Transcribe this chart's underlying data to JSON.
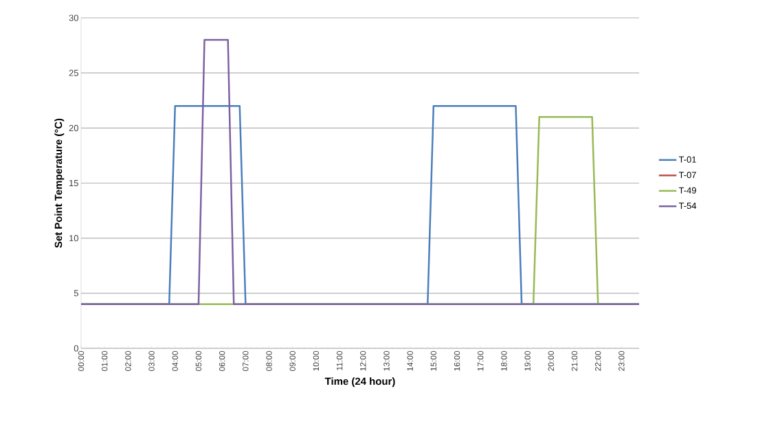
{
  "chart_data": {
    "type": "line",
    "xlabel": "Time (24 hour)",
    "ylabel": "Set Point Temperature (°C)",
    "series": [
      {
        "name": "T-01",
        "color": "#4a7ebb",
        "x": [
          0,
          3.75,
          4.0,
          6.75,
          7.0,
          14.75,
          15.0,
          18.5,
          18.75,
          23.75
        ],
        "values": [
          4,
          4,
          22,
          22,
          4,
          4,
          22,
          22,
          4,
          4
        ]
      },
      {
        "name": "T-07",
        "color": "#be4b48"
      },
      {
        "name": "T-49",
        "color": "#98b954",
        "x": [
          0,
          19.25,
          19.5,
          21.75,
          22.0,
          23.75
        ],
        "values": [
          4,
          4,
          21,
          21,
          4,
          4
        ]
      },
      {
        "name": "T-54",
        "color": "#7d60a0",
        "x": [
          0,
          5.0,
          5.25,
          6.25,
          6.5,
          23.75
        ],
        "values": [
          4,
          4,
          28,
          28,
          4,
          4
        ]
      }
    ],
    "xlim": [
      0,
      23.75
    ],
    "xticks": [
      {
        "value": 0,
        "label": "00:00"
      },
      {
        "value": 1,
        "label": "01:00"
      },
      {
        "value": 2,
        "label": "02:00"
      },
      {
        "value": 3,
        "label": "03:00"
      },
      {
        "value": 4,
        "label": "04:00"
      },
      {
        "value": 5,
        "label": "05:00"
      },
      {
        "value": 6,
        "label": "06:00"
      },
      {
        "value": 7,
        "label": "07:00"
      },
      {
        "value": 8,
        "label": "08:00"
      },
      {
        "value": 9,
        "label": "09:00"
      },
      {
        "value": 10,
        "label": "10:00"
      },
      {
        "value": 11,
        "label": "11:00"
      },
      {
        "value": 12,
        "label": "12:00"
      },
      {
        "value": 13,
        "label": "13:00"
      },
      {
        "value": 14,
        "label": "14:00"
      },
      {
        "value": 15,
        "label": "15:00"
      },
      {
        "value": 16,
        "label": "16:00"
      },
      {
        "value": 17,
        "label": "17:00"
      },
      {
        "value": 18,
        "label": "18:00"
      },
      {
        "value": 19,
        "label": "19:00"
      },
      {
        "value": 20,
        "label": "20:00"
      },
      {
        "value": 21,
        "label": "21:00"
      },
      {
        "value": 22,
        "label": "22:00"
      },
      {
        "value": 23,
        "label": "23:00"
      }
    ],
    "ylim": [
      0,
      30
    ],
    "yticks": [
      0,
      5,
      10,
      15,
      20,
      25,
      30
    ],
    "grid": "y",
    "legend": "right",
    "line_style": "solid"
  }
}
